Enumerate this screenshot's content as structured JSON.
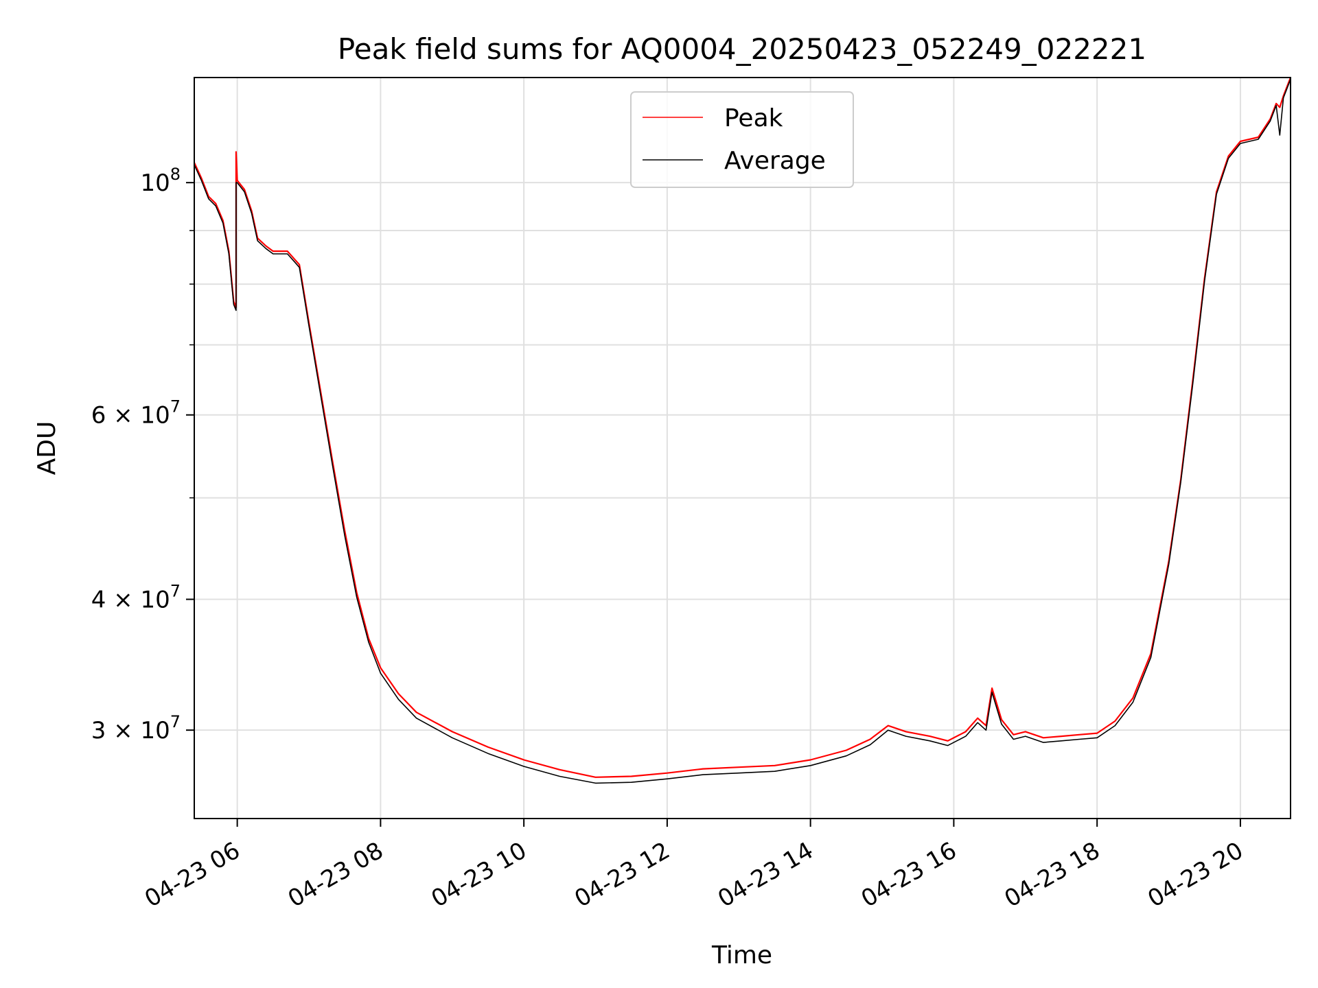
{
  "chart_data": {
    "type": "line",
    "title": "Peak field sums for AQ0004_20250423_052249_022221",
    "xlabel": "Time",
    "ylabel": "ADU",
    "yscale": "log",
    "grid": true,
    "legend_placement": "upper center",
    "xlim": [
      "2025-04-23 05:24",
      "2025-04-23 20:42"
    ],
    "ylim": [
      24700000,
      126000000
    ],
    "x_ticks": [
      "2025-04-23 06:00",
      "2025-04-23 08:00",
      "2025-04-23 10:00",
      "2025-04-23 12:00",
      "2025-04-23 14:00",
      "2025-04-23 16:00",
      "2025-04-23 18:00",
      "2025-04-23 20:00"
    ],
    "x_tick_labels": [
      "04-23 06",
      "04-23 08",
      "04-23 10",
      "04-23 12",
      "04-23 14",
      "04-23 16",
      "04-23 18",
      "04-23 20"
    ],
    "y_ticks": [
      {
        "value": 30000000,
        "mantissa": "3",
        "exponent": "7"
      },
      {
        "value": 40000000,
        "mantissa": "4",
        "exponent": "7"
      },
      {
        "value": 60000000,
        "mantissa": "6",
        "exponent": "7"
      },
      {
        "value": 100000000,
        "mantissa": "",
        "exponent": "8"
      }
    ],
    "y_minor_ticks": [
      50000000,
      70000000,
      80000000,
      90000000
    ],
    "series": [
      {
        "name": "Peak",
        "color": "#ff0000",
        "points": [
          [
            "2025-04-23 05:24",
            104500000
          ],
          [
            "2025-04-23 05:30",
            101000000
          ],
          [
            "2025-04-23 05:36",
            97000000
          ],
          [
            "2025-04-23 05:42",
            95500000
          ],
          [
            "2025-04-23 05:48",
            92000000
          ],
          [
            "2025-04-23 05:53",
            86000000
          ],
          [
            "2025-04-23 05:57",
            77000000
          ],
          [
            "2025-04-23 05:59",
            76000000
          ],
          [
            "2025-04-23 05:59",
            107000000
          ],
          [
            "2025-04-23 06:00",
            100500000
          ],
          [
            "2025-04-23 06:06",
            98500000
          ],
          [
            "2025-04-23 06:12",
            94000000
          ],
          [
            "2025-04-23 06:17",
            88500000
          ],
          [
            "2025-04-23 06:24",
            87000000
          ],
          [
            "2025-04-23 06:30",
            86000000
          ],
          [
            "2025-04-23 06:42",
            86000000
          ],
          [
            "2025-04-23 06:48",
            84500000
          ],
          [
            "2025-04-23 06:52",
            83500000
          ],
          [
            "2025-04-23 07:00",
            73500000
          ],
          [
            "2025-04-23 07:10",
            63000000
          ],
          [
            "2025-04-23 07:20",
            54000000
          ],
          [
            "2025-04-23 07:30",
            46500000
          ],
          [
            "2025-04-23 07:40",
            40600000
          ],
          [
            "2025-04-23 07:50",
            36700000
          ],
          [
            "2025-04-23 08:00",
            34400000
          ],
          [
            "2025-04-23 08:15",
            32500000
          ],
          [
            "2025-04-23 08:30",
            31200000
          ],
          [
            "2025-04-23 09:00",
            29900000
          ],
          [
            "2025-04-23 09:30",
            28900000
          ],
          [
            "2025-04-23 10:00",
            28100000
          ],
          [
            "2025-04-23 10:30",
            27500000
          ],
          [
            "2025-04-23 11:00",
            27050000
          ],
          [
            "2025-04-23 11:30",
            27100000
          ],
          [
            "2025-04-23 12:00",
            27300000
          ],
          [
            "2025-04-23 12:30",
            27550000
          ],
          [
            "2025-04-23 13:00",
            27650000
          ],
          [
            "2025-04-23 13:30",
            27750000
          ],
          [
            "2025-04-23 14:00",
            28100000
          ],
          [
            "2025-04-23 14:30",
            28700000
          ],
          [
            "2025-04-23 14:50",
            29400000
          ],
          [
            "2025-04-23 15:05",
            30300000
          ],
          [
            "2025-04-23 15:20",
            29900000
          ],
          [
            "2025-04-23 15:40",
            29600000
          ],
          [
            "2025-04-23 15:55",
            29300000
          ],
          [
            "2025-04-23 16:10",
            29900000
          ],
          [
            "2025-04-23 16:20",
            30800000
          ],
          [
            "2025-04-23 16:27",
            30300000
          ],
          [
            "2025-04-23 16:32",
            32900000
          ],
          [
            "2025-04-23 16:40",
            30700000
          ],
          [
            "2025-04-23 16:50",
            29700000
          ],
          [
            "2025-04-23 17:00",
            29900000
          ],
          [
            "2025-04-23 17:15",
            29500000
          ],
          [
            "2025-04-23 17:30",
            29600000
          ],
          [
            "2025-04-23 17:45",
            29700000
          ],
          [
            "2025-04-23 18:00",
            29800000
          ],
          [
            "2025-04-23 18:15",
            30600000
          ],
          [
            "2025-04-23 18:30",
            32200000
          ],
          [
            "2025-04-23 18:45",
            35500000
          ],
          [
            "2025-04-23 19:00",
            43500000
          ],
          [
            "2025-04-23 19:10",
            52000000
          ],
          [
            "2025-04-23 19:20",
            64500000
          ],
          [
            "2025-04-23 19:30",
            81000000
          ],
          [
            "2025-04-23 19:40",
            98000000
          ],
          [
            "2025-04-23 19:50",
            106000000
          ],
          [
            "2025-04-23 20:00",
            109500000
          ],
          [
            "2025-04-23 20:15",
            110500000
          ],
          [
            "2025-04-23 20:25",
            115000000
          ],
          [
            "2025-04-23 20:30",
            119000000
          ],
          [
            "2025-04-23 20:33",
            118000000
          ],
          [
            "2025-04-23 20:36",
            121000000
          ],
          [
            "2025-04-23 20:42",
            126000000
          ]
        ]
      },
      {
        "name": "Average",
        "color": "#000000",
        "points": [
          [
            "2025-04-23 05:24",
            104000000
          ],
          [
            "2025-04-23 05:30",
            100500000
          ],
          [
            "2025-04-23 05:36",
            96500000
          ],
          [
            "2025-04-23 05:42",
            95000000
          ],
          [
            "2025-04-23 05:48",
            91500000
          ],
          [
            "2025-04-23 05:53",
            85500000
          ],
          [
            "2025-04-23 05:57",
            76500000
          ],
          [
            "2025-04-23 05:59",
            75500000
          ],
          [
            "2025-04-23 05:59",
            100000000
          ],
          [
            "2025-04-23 06:00",
            100000000
          ],
          [
            "2025-04-23 06:06",
            98000000
          ],
          [
            "2025-04-23 06:12",
            93500000
          ],
          [
            "2025-04-23 06:17",
            88000000
          ],
          [
            "2025-04-23 06:24",
            86500000
          ],
          [
            "2025-04-23 06:30",
            85500000
          ],
          [
            "2025-04-23 06:42",
            85500000
          ],
          [
            "2025-04-23 06:48",
            84000000
          ],
          [
            "2025-04-23 06:52",
            83000000
          ],
          [
            "2025-04-23 07:00",
            73000000
          ],
          [
            "2025-04-23 07:10",
            62500000
          ],
          [
            "2025-04-23 07:20",
            53500000
          ],
          [
            "2025-04-23 07:30",
            46000000
          ],
          [
            "2025-04-23 07:40",
            40200000
          ],
          [
            "2025-04-23 07:50",
            36400000
          ],
          [
            "2025-04-23 08:00",
            34000000
          ],
          [
            "2025-04-23 08:15",
            32100000
          ],
          [
            "2025-04-23 08:30",
            30800000
          ],
          [
            "2025-04-23 09:00",
            29500000
          ],
          [
            "2025-04-23 09:30",
            28500000
          ],
          [
            "2025-04-23 10:00",
            27700000
          ],
          [
            "2025-04-23 10:30",
            27100000
          ],
          [
            "2025-04-23 11:00",
            26700000
          ],
          [
            "2025-04-23 11:30",
            26750000
          ],
          [
            "2025-04-23 12:00",
            26950000
          ],
          [
            "2025-04-23 12:30",
            27200000
          ],
          [
            "2025-04-23 13:00",
            27300000
          ],
          [
            "2025-04-23 13:30",
            27400000
          ],
          [
            "2025-04-23 14:00",
            27750000
          ],
          [
            "2025-04-23 14:30",
            28350000
          ],
          [
            "2025-04-23 14:50",
            29050000
          ],
          [
            "2025-04-23 15:05",
            30000000
          ],
          [
            "2025-04-23 15:20",
            29600000
          ],
          [
            "2025-04-23 15:40",
            29300000
          ],
          [
            "2025-04-23 15:55",
            29000000
          ],
          [
            "2025-04-23 16:10",
            29600000
          ],
          [
            "2025-04-23 16:20",
            30500000
          ],
          [
            "2025-04-23 16:27",
            30000000
          ],
          [
            "2025-04-23 16:32",
            32600000
          ],
          [
            "2025-04-23 16:40",
            30400000
          ],
          [
            "2025-04-23 16:50",
            29400000
          ],
          [
            "2025-04-23 17:00",
            29600000
          ],
          [
            "2025-04-23 17:15",
            29200000
          ],
          [
            "2025-04-23 17:30",
            29300000
          ],
          [
            "2025-04-23 17:45",
            29400000
          ],
          [
            "2025-04-23 18:00",
            29500000
          ],
          [
            "2025-04-23 18:15",
            30300000
          ],
          [
            "2025-04-23 18:30",
            31900000
          ],
          [
            "2025-04-23 18:45",
            35200000
          ],
          [
            "2025-04-23 19:00",
            43200000
          ],
          [
            "2025-04-23 19:10",
            51700000
          ],
          [
            "2025-04-23 19:20",
            64000000
          ],
          [
            "2025-04-23 19:30",
            80500000
          ],
          [
            "2025-04-23 19:40",
            97500000
          ],
          [
            "2025-04-23 19:50",
            105500000
          ],
          [
            "2025-04-23 20:00",
            109000000
          ],
          [
            "2025-04-23 20:15",
            110000000
          ],
          [
            "2025-04-23 20:25",
            114500000
          ],
          [
            "2025-04-23 20:30",
            118500000
          ],
          [
            "2025-04-23 20:33",
            111000000
          ],
          [
            "2025-04-23 20:36",
            120500000
          ],
          [
            "2025-04-23 20:42",
            125500000
          ]
        ]
      }
    ]
  }
}
